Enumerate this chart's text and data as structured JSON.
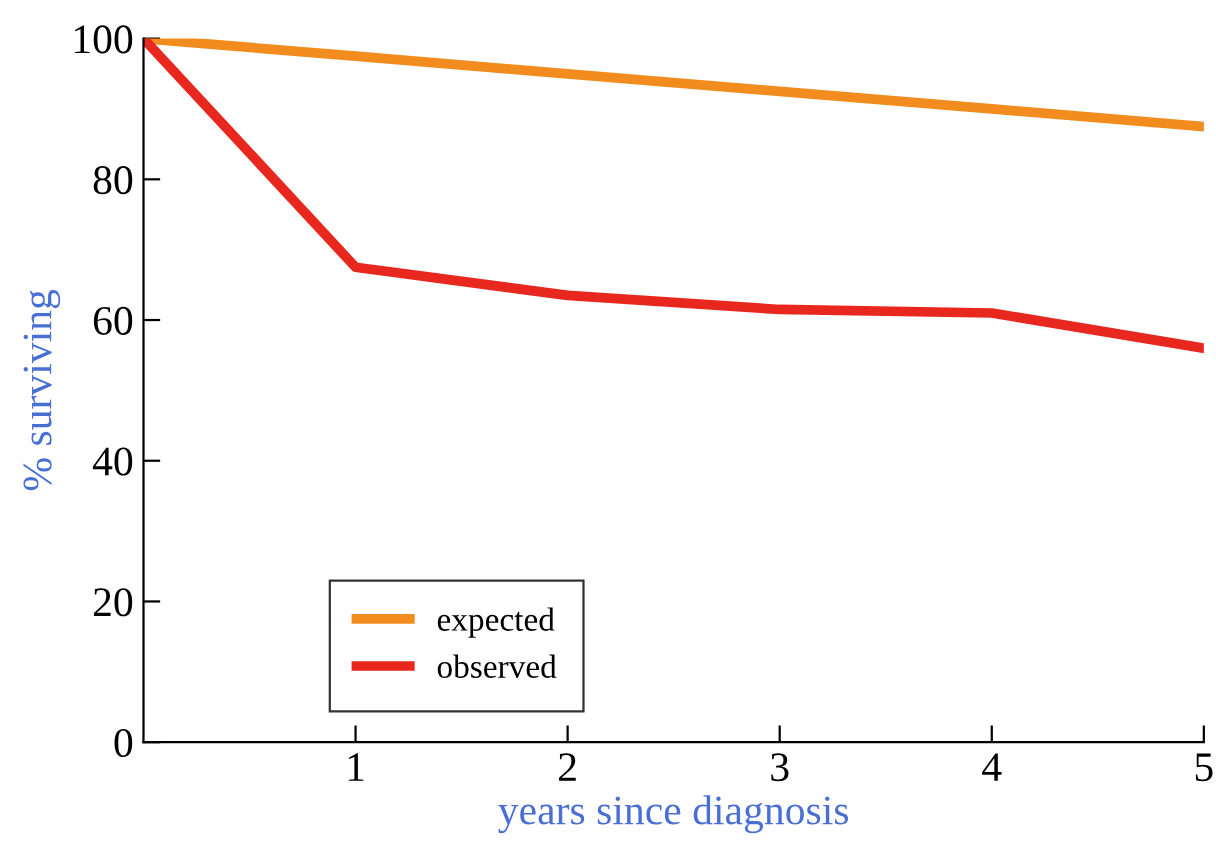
{
  "chart_data": {
    "type": "line",
    "xlabel": "years since diagnosis",
    "ylabel": "% surviving",
    "x": [
      0,
      1,
      2,
      3,
      4,
      5
    ],
    "series": [
      {
        "name": "expected",
        "color": "#f28c1e",
        "values": [
          100,
          97.5,
          95,
          92.5,
          90,
          87.5
        ]
      },
      {
        "name": "observed",
        "color": "#e8281e",
        "values": [
          100,
          67.5,
          63.5,
          61.5,
          61,
          56
        ]
      }
    ],
    "xlim": [
      0,
      5
    ],
    "xticks": [
      1,
      2,
      3,
      4,
      5
    ],
    "ylim": [
      0,
      100
    ],
    "yticks": [
      0,
      20,
      40,
      60,
      80,
      100
    ],
    "grid": false,
    "legend": "bottom left",
    "marker": "none",
    "line_style": "solid"
  }
}
